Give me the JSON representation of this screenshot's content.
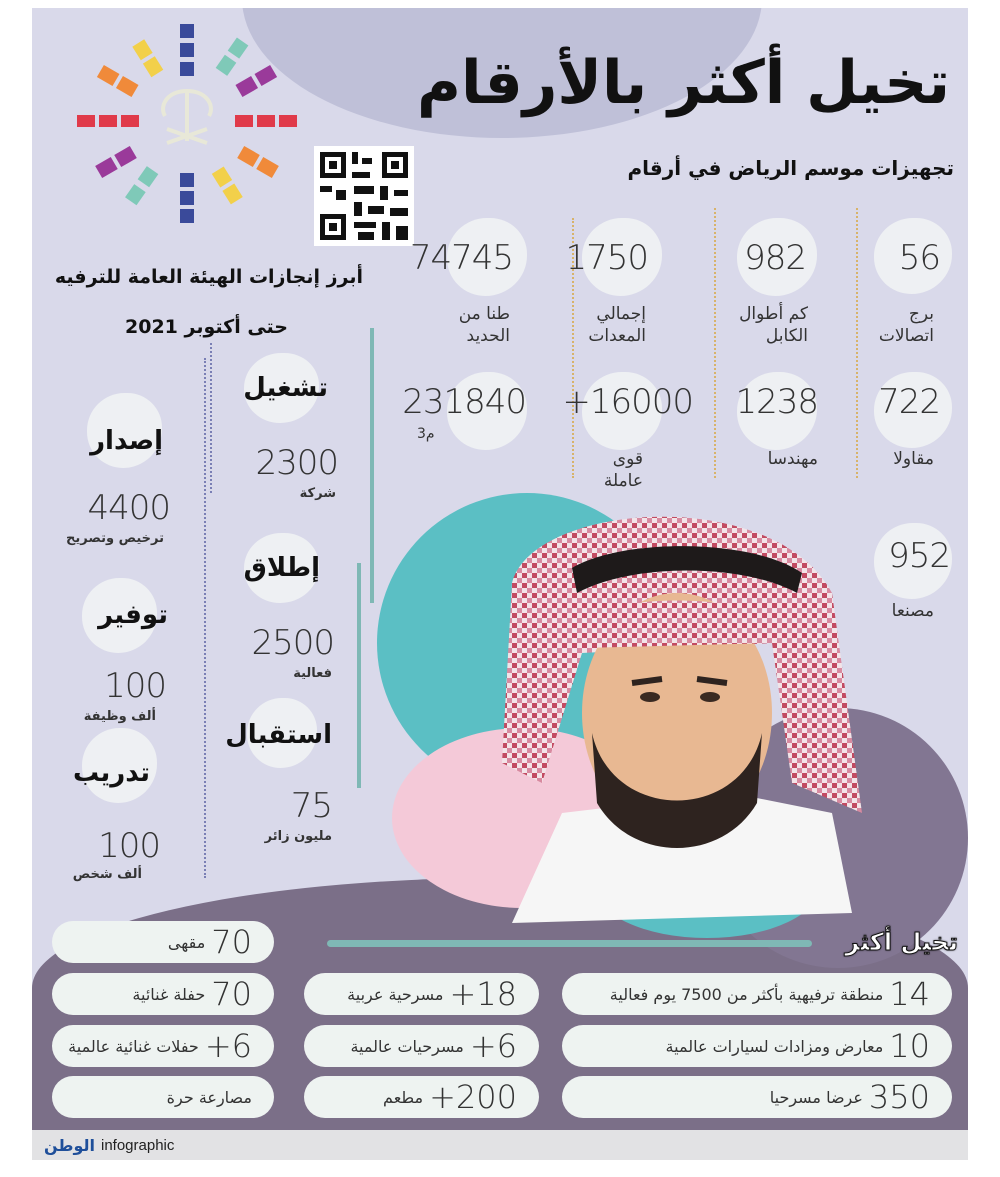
{
  "title": "تخيل أكثر بالأرقام",
  "riyadh_section": {
    "heading": "تجهيزات موسم الرياض في أرقام",
    "stats": [
      {
        "value": "56",
        "label": "برج\nاتصالات"
      },
      {
        "value": "982",
        "label": "كم أطوال\nالكابل"
      },
      {
        "value": "1750",
        "label": "إجمالي\nالمعدات"
      },
      {
        "value": "74745",
        "label": "طنا من\nالحديد"
      },
      {
        "value": "722",
        "label": "مقاولا"
      },
      {
        "value": "1238",
        "label": "مهندسا"
      },
      {
        "value": "+16000",
        "label": "قوى\nعاملة"
      },
      {
        "value": "231840",
        "label": "م3"
      },
      {
        "value": "952",
        "label": "مصنعا"
      }
    ]
  },
  "gea_section": {
    "heading": "أبرز إنجازات الهيئة العامة للترفيه",
    "subheading": "حتى أكتوبر 2021",
    "items": [
      {
        "title": "تشغيل",
        "value": "2300",
        "unit": "شركة"
      },
      {
        "title": "إطلاق",
        "value": "2500",
        "unit": "فعالية"
      },
      {
        "title": "استقبال",
        "value": "75",
        "unit": "مليون زائر"
      },
      {
        "title": "إصدار",
        "value": "4400",
        "unit": "ترخيص وتصريح"
      },
      {
        "title": "توفير",
        "value": "100",
        "unit": "ألف وظيفة"
      },
      {
        "title": "تدريب",
        "value": "100",
        "unit": "ألف شخص"
      }
    ]
  },
  "imagine_more": {
    "heading": "تخيل أكثر",
    "col_right": [
      {
        "value": "14",
        "text": "منطقة ترفيهية بأكثر من 7500 يوم فعالية"
      },
      {
        "value": "10",
        "text": "معارض ومزادات لسيارات عالمية"
      },
      {
        "value": "350",
        "text": "عرضا مسرحيا"
      }
    ],
    "col_middle": [
      {
        "value": "+18",
        "text": "مسرحية عربية"
      },
      {
        "value": "+6",
        "text": "مسرحيات عالمية"
      },
      {
        "value": "+200",
        "text": "مطعم"
      }
    ],
    "col_left": [
      {
        "value": "70",
        "text": "مقهى"
      },
      {
        "value": "70",
        "text": "حفلة غنائية"
      },
      {
        "value": "+6",
        "text": "حفلات غنائية عالمية"
      },
      {
        "value": "",
        "text": "مصارعة حرة"
      }
    ]
  },
  "footer": {
    "brand": "الوطن",
    "label": "infographic"
  },
  "colors": {
    "background": "#d9d9ea",
    "bottom": "#7b6f88",
    "teal": "#5bbfc4",
    "pink": "#f4c9d8",
    "accent_line": "#7fb8b5"
  }
}
